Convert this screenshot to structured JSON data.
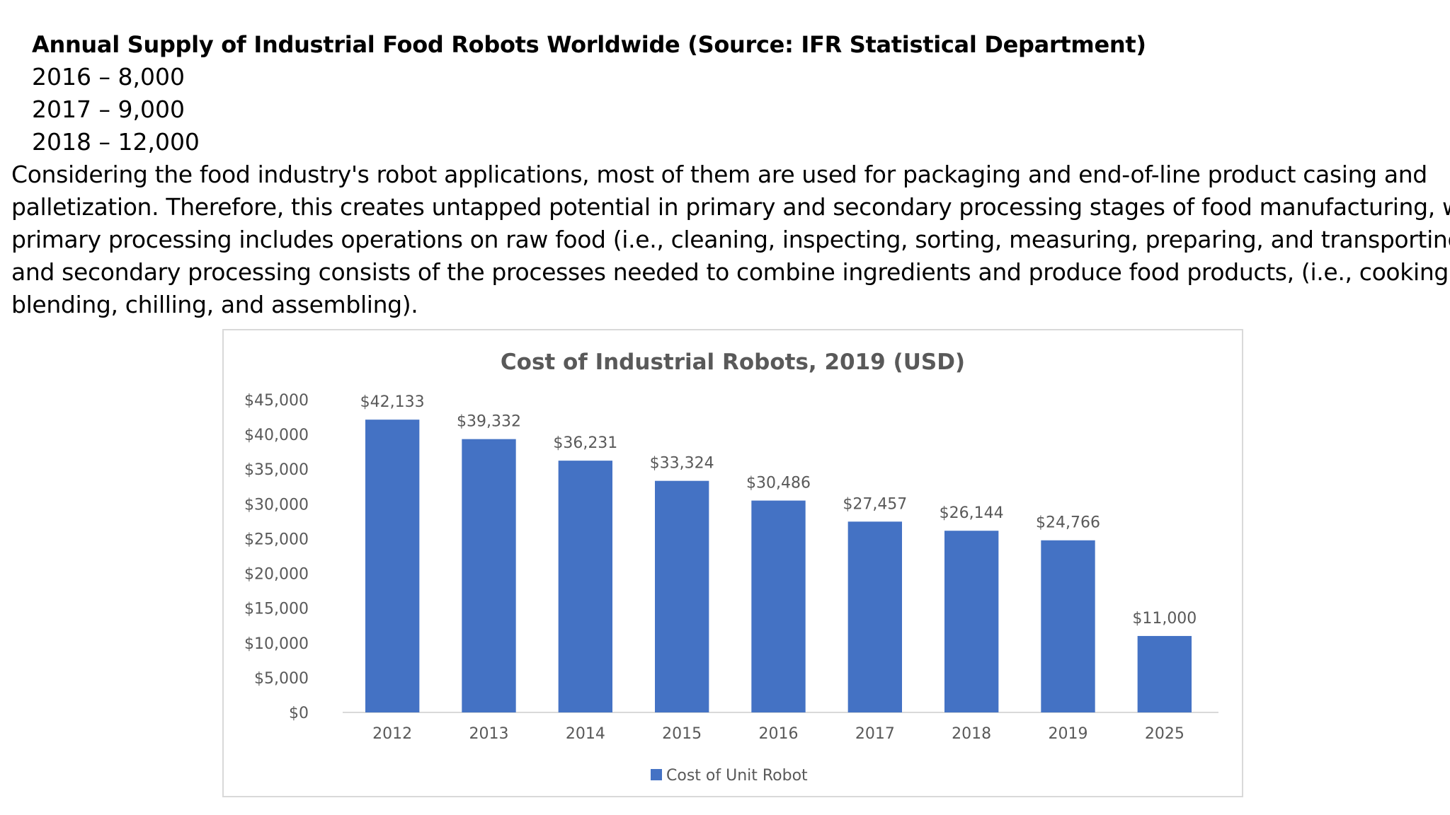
{
  "document": {
    "supply_title": "Annual Supply of Industrial Food Robots Worldwide (Source: IFR Statistical Department)",
    "supply_items": [
      "2016 – 8,000",
      "2017 – 9,000",
      "2018 – 12,000"
    ],
    "paragraph_lines": [
      "Considering the food industry's robot applications, most of them are used for packaging and end-of-line product casing and",
      "palletization. Therefore, this creates untapped potential in primary and secondary processing stages of food manufacturing, where",
      "primary processing includes operations on raw food (i.e., cleaning, inspecting, sorting, measuring, preparing, and transporting),",
      "and secondary processing consists of the processes needed to combine ingredients and produce food products, (i.e., cooking,",
      "blending, chilling, and assembling)."
    ]
  },
  "chart_data": {
    "type": "bar",
    "title": "Cost of Industrial Robots, 2019 (USD)",
    "xlabel": "",
    "ylabel": "",
    "categories": [
      "2012",
      "2013",
      "2014",
      "2015",
      "2016",
      "2017",
      "2018",
      "2019",
      "2025"
    ],
    "series": [
      {
        "name": "Cost of Unit Robot",
        "values": [
          42133,
          39332,
          36231,
          33324,
          30486,
          27457,
          26144,
          24766,
          11000
        ],
        "labels": [
          "$42,133",
          "$39,332",
          "$36,231",
          "$33,324",
          "$30,486",
          "$27,457",
          "$26,144",
          "$24,766",
          "$11,000"
        ]
      }
    ],
    "ylim": [
      0,
      45000
    ],
    "yticks": [
      0,
      5000,
      10000,
      15000,
      20000,
      25000,
      30000,
      35000,
      40000,
      45000
    ],
    "ytick_labels": [
      "$0",
      "$5,000",
      "$10,000",
      "$15,000",
      "$20,000",
      "$25,000",
      "$30,000",
      "$35,000",
      "$40,000",
      "$45,000"
    ],
    "grid": false,
    "legend_position": "bottom",
    "bar_color": "#4472c4"
  }
}
